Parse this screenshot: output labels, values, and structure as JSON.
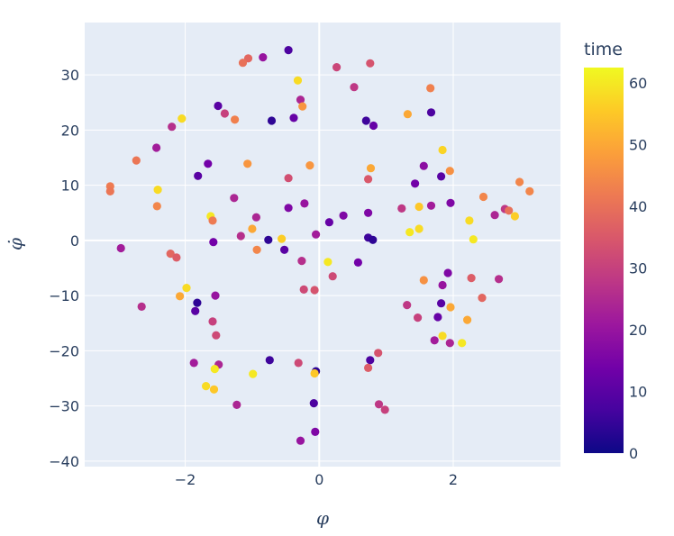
{
  "chart_data": {
    "type": "scatter",
    "xlabel": "φ",
    "ylabel": "φ̇",
    "xlim": [
      -3.5,
      3.6
    ],
    "ylim": [
      -41,
      39.5
    ],
    "xticks": [
      -2,
      0,
      2
    ],
    "xtick_labels": [
      "−2",
      "0",
      "2"
    ],
    "yticks": [
      -40,
      -30,
      -20,
      -10,
      0,
      10,
      20,
      30
    ],
    "ytick_labels": [
      "−40",
      "−30",
      "−20",
      "−10",
      "0",
      "10",
      "20",
      "30"
    ],
    "grid": true,
    "colorbar": {
      "title": "time",
      "range": [
        0,
        62.5
      ],
      "ticks": [
        0,
        10,
        20,
        30,
        40,
        50,
        60
      ],
      "tick_labels": [
        "0",
        "10",
        "20",
        "30",
        "40",
        "50",
        "60"
      ],
      "colorscale": [
        "#0d0887",
        "#46039f",
        "#7201a8",
        "#9c179e",
        "#bd3786",
        "#d8576b",
        "#ed7953",
        "#fb9f3a",
        "#fdca26",
        "#f0f921"
      ]
    },
    "points": [
      {
        "x": -0.46,
        "y": 34.5,
        "c": 8
      },
      {
        "x": -0.84,
        "y": 33.2,
        "c": 20
      },
      {
        "x": -1.06,
        "y": 33.0,
        "c": 38
      },
      {
        "x": -1.14,
        "y": 32.2,
        "c": 40
      },
      {
        "x": 0.76,
        "y": 32.1,
        "c": 34
      },
      {
        "x": 0.26,
        "y": 31.4,
        "c": 31
      },
      {
        "x": -0.32,
        "y": 29.0,
        "c": 58
      },
      {
        "x": 0.52,
        "y": 27.8,
        "c": 28
      },
      {
        "x": 1.66,
        "y": 27.6,
        "c": 43
      },
      {
        "x": -0.28,
        "y": 25.5,
        "c": 24
      },
      {
        "x": -0.25,
        "y": 24.3,
        "c": 47
      },
      {
        "x": -1.51,
        "y": 24.4,
        "c": 10
      },
      {
        "x": -1.41,
        "y": 23.0,
        "c": 30
      },
      {
        "x": 1.67,
        "y": 23.2,
        "c": 8
      },
      {
        "x": 1.32,
        "y": 22.9,
        "c": 50
      },
      {
        "x": -0.38,
        "y": 22.2,
        "c": 12
      },
      {
        "x": -2.05,
        "y": 22.1,
        "c": 58
      },
      {
        "x": -1.26,
        "y": 21.9,
        "c": 43
      },
      {
        "x": -0.71,
        "y": 21.7,
        "c": 4
      },
      {
        "x": 0.7,
        "y": 21.7,
        "c": 6
      },
      {
        "x": 0.81,
        "y": 20.8,
        "c": 12
      },
      {
        "x": -2.2,
        "y": 20.6,
        "c": 26
      },
      {
        "x": -2.43,
        "y": 16.8,
        "c": 22
      },
      {
        "x": 1.84,
        "y": 16.4,
        "c": 57
      },
      {
        "x": -2.73,
        "y": 14.5,
        "c": 41
      },
      {
        "x": -1.66,
        "y": 13.9,
        "c": 14
      },
      {
        "x": -1.07,
        "y": 13.9,
        "c": 47
      },
      {
        "x": -0.14,
        "y": 13.6,
        "c": 47
      },
      {
        "x": 1.56,
        "y": 13.5,
        "c": 18
      },
      {
        "x": 0.77,
        "y": 13.1,
        "c": 50
      },
      {
        "x": 1.95,
        "y": 12.6,
        "c": 46
      },
      {
        "x": -1.81,
        "y": 11.7,
        "c": 10
      },
      {
        "x": 1.82,
        "y": 11.6,
        "c": 10
      },
      {
        "x": -0.46,
        "y": 11.3,
        "c": 33
      },
      {
        "x": 0.73,
        "y": 11.1,
        "c": 35
      },
      {
        "x": 2.99,
        "y": 10.6,
        "c": 44
      },
      {
        "x": 1.43,
        "y": 10.3,
        "c": 14
      },
      {
        "x": -3.12,
        "y": 9.8,
        "c": 42
      },
      {
        "x": -3.12,
        "y": 8.9,
        "c": 41
      },
      {
        "x": -2.41,
        "y": 9.2,
        "c": 58
      },
      {
        "x": 3.14,
        "y": 8.9,
        "c": 44
      },
      {
        "x": 2.45,
        "y": 7.9,
        "c": 44
      },
      {
        "x": -1.27,
        "y": 7.7,
        "c": 24
      },
      {
        "x": 1.96,
        "y": 6.8,
        "c": 16
      },
      {
        "x": -0.22,
        "y": 6.7,
        "c": 20
      },
      {
        "x": 1.67,
        "y": 6.3,
        "c": 22
      },
      {
        "x": -2.42,
        "y": 6.2,
        "c": 44
      },
      {
        "x": 1.49,
        "y": 6.1,
        "c": 55
      },
      {
        "x": -0.46,
        "y": 5.9,
        "c": 16
      },
      {
        "x": 1.23,
        "y": 5.8,
        "c": 28
      },
      {
        "x": 2.77,
        "y": 5.7,
        "c": 28
      },
      {
        "x": 2.83,
        "y": 5.4,
        "c": 40
      },
      {
        "x": 0.73,
        "y": 5.0,
        "c": 16
      },
      {
        "x": 2.62,
        "y": 4.6,
        "c": 24
      },
      {
        "x": 0.36,
        "y": 4.5,
        "c": 16
      },
      {
        "x": -1.62,
        "y": 4.4,
        "c": 60
      },
      {
        "x": 2.92,
        "y": 4.4,
        "c": 56
      },
      {
        "x": -0.94,
        "y": 4.2,
        "c": 24
      },
      {
        "x": 2.24,
        "y": 3.6,
        "c": 58
      },
      {
        "x": -1.59,
        "y": 3.6,
        "c": 42
      },
      {
        "x": 0.15,
        "y": 3.3,
        "c": 12
      },
      {
        "x": -1.0,
        "y": 2.1,
        "c": 50
      },
      {
        "x": 1.49,
        "y": 2.1,
        "c": 58
      },
      {
        "x": 1.35,
        "y": 1.5,
        "c": 60
      },
      {
        "x": -0.05,
        "y": 1.1,
        "c": 22
      },
      {
        "x": -1.17,
        "y": 0.8,
        "c": 26
      },
      {
        "x": 0.73,
        "y": 0.5,
        "c": 6
      },
      {
        "x": -0.76,
        "y": 0.1,
        "c": 4
      },
      {
        "x": 2.3,
        "y": 0.2,
        "c": 60
      },
      {
        "x": -0.56,
        "y": 0.3,
        "c": 56
      },
      {
        "x": 0.8,
        "y": 0.1,
        "c": 4
      },
      {
        "x": -1.58,
        "y": -0.3,
        "c": 14
      },
      {
        "x": -2.96,
        "y": -1.4,
        "c": 22
      },
      {
        "x": -0.52,
        "y": -1.7,
        "c": 10
      },
      {
        "x": -0.93,
        "y": -1.7,
        "c": 44
      },
      {
        "x": -2.22,
        "y": -2.4,
        "c": 38
      },
      {
        "x": -2.13,
        "y": -3.1,
        "c": 36
      },
      {
        "x": -0.26,
        "y": -3.7,
        "c": 26
      },
      {
        "x": 0.13,
        "y": -3.9,
        "c": 60
      },
      {
        "x": 0.58,
        "y": -4.0,
        "c": 14
      },
      {
        "x": 1.92,
        "y": -5.9,
        "c": 16
      },
      {
        "x": 0.2,
        "y": -6.5,
        "c": 32
      },
      {
        "x": 2.27,
        "y": -6.8,
        "c": 36
      },
      {
        "x": 2.68,
        "y": -7.0,
        "c": 26
      },
      {
        "x": 1.56,
        "y": -7.2,
        "c": 46
      },
      {
        "x": 1.84,
        "y": -8.1,
        "c": 20
      },
      {
        "x": -1.98,
        "y": -8.6,
        "c": 58
      },
      {
        "x": -0.23,
        "y": -8.9,
        "c": 32
      },
      {
        "x": -0.07,
        "y": -9.0,
        "c": 34
      },
      {
        "x": -1.55,
        "y": -10.0,
        "c": 20
      },
      {
        "x": -2.08,
        "y": -10.1,
        "c": 50
      },
      {
        "x": 2.43,
        "y": -10.4,
        "c": 38
      },
      {
        "x": -1.82,
        "y": -11.3,
        "c": 4
      },
      {
        "x": 1.82,
        "y": -11.4,
        "c": 10
      },
      {
        "x": 1.31,
        "y": -11.7,
        "c": 28
      },
      {
        "x": -2.65,
        "y": -12.0,
        "c": 26
      },
      {
        "x": 1.96,
        "y": -12.1,
        "c": 50
      },
      {
        "x": -1.85,
        "y": -12.8,
        "c": 10
      },
      {
        "x": 1.47,
        "y": -14.0,
        "c": 30
      },
      {
        "x": 1.77,
        "y": -13.9,
        "c": 12
      },
      {
        "x": 2.21,
        "y": -14.4,
        "c": 50
      },
      {
        "x": -1.59,
        "y": -14.7,
        "c": 30
      },
      {
        "x": -1.54,
        "y": -17.2,
        "c": 32
      },
      {
        "x": 1.84,
        "y": -17.3,
        "c": 58
      },
      {
        "x": 1.72,
        "y": -18.1,
        "c": 22
      },
      {
        "x": 1.95,
        "y": -18.6,
        "c": 24
      },
      {
        "x": 2.13,
        "y": -18.6,
        "c": 60
      },
      {
        "x": 0.88,
        "y": -20.4,
        "c": 34
      },
      {
        "x": 0.76,
        "y": -21.7,
        "c": 8
      },
      {
        "x": -0.74,
        "y": -21.7,
        "c": 6
      },
      {
        "x": -1.87,
        "y": -22.2,
        "c": 22
      },
      {
        "x": -0.31,
        "y": -22.2,
        "c": 32
      },
      {
        "x": -1.5,
        "y": -22.5,
        "c": 24
      },
      {
        "x": -1.56,
        "y": -23.3,
        "c": 60
      },
      {
        "x": 0.73,
        "y": -23.1,
        "c": 36
      },
      {
        "x": -0.05,
        "y": -23.7,
        "c": 4
      },
      {
        "x": -0.07,
        "y": -24.1,
        "c": 55
      },
      {
        "x": -0.99,
        "y": -24.2,
        "c": 60
      },
      {
        "x": -1.69,
        "y": -26.4,
        "c": 58
      },
      {
        "x": -1.57,
        "y": -27.0,
        "c": 55
      },
      {
        "x": -0.08,
        "y": -29.5,
        "c": 8
      },
      {
        "x": -1.23,
        "y": -29.8,
        "c": 24
      },
      {
        "x": 0.89,
        "y": -29.7,
        "c": 28
      },
      {
        "x": 0.98,
        "y": -30.7,
        "c": 30
      },
      {
        "x": -0.06,
        "y": -34.7,
        "c": 16
      },
      {
        "x": -0.28,
        "y": -36.3,
        "c": 20
      }
    ]
  }
}
